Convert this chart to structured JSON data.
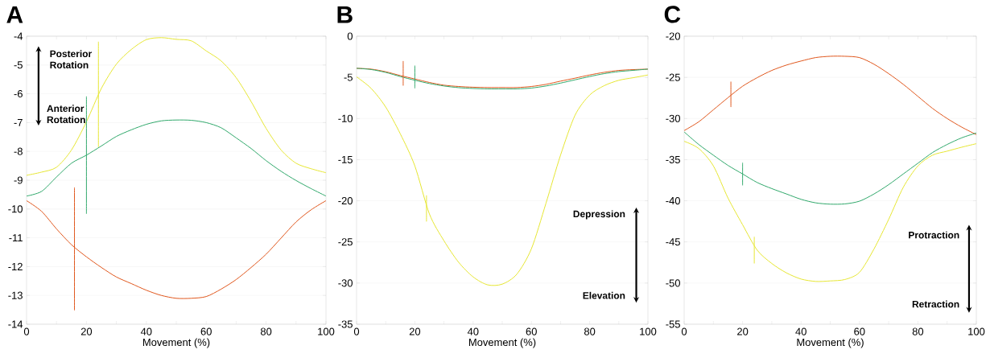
{
  "chart_data": [
    {
      "type": "line",
      "title": "A",
      "xlabel": "Movement (%)",
      "x": [
        0,
        5,
        10,
        15,
        20,
        25,
        30,
        35,
        40,
        45,
        50,
        55,
        60,
        65,
        70,
        75,
        80,
        85,
        90,
        95,
        100
      ],
      "xlim": [
        0,
        100
      ],
      "ylim": [
        -14,
        -4
      ],
      "xticks": [
        0,
        {
          "value": 10,
          "label": null
        },
        20,
        {
          "value": 30,
          "label": null
        },
        40,
        {
          "value": 50,
          "label": null
        },
        60,
        {
          "value": 70,
          "label": null
        },
        80,
        {
          "value": 90,
          "label": null
        },
        100
      ],
      "yticks": [
        -14,
        -13,
        -12,
        -11,
        -10,
        -9,
        -8,
        -7,
        -6,
        -5,
        -4
      ],
      "grid": "y",
      "annotations": [
        "Posterior Rotation",
        "Anterior Rotation"
      ],
      "series": [
        {
          "color": "#e6e632",
          "values": [
            -8.83,
            -8.72,
            -8.55,
            -7.95,
            -6.97,
            -5.81,
            -4.97,
            -4.46,
            -4.12,
            -4.05,
            -4.11,
            -4.16,
            -4.51,
            -4.86,
            -5.44,
            -6.27,
            -7.2,
            -7.95,
            -8.41,
            -8.6,
            -8.74
          ]
        },
        {
          "color": "#2fa86a",
          "values": [
            -9.55,
            -9.39,
            -8.89,
            -8.41,
            -8.13,
            -7.81,
            -7.48,
            -7.25,
            -7.06,
            -6.94,
            -6.91,
            -6.92,
            -7.0,
            -7.18,
            -7.53,
            -7.9,
            -8.32,
            -8.69,
            -9.01,
            -9.29,
            -9.55
          ]
        },
        {
          "color": "#e0561c",
          "values": [
            -9.71,
            -10.08,
            -10.69,
            -11.24,
            -11.66,
            -12.03,
            -12.36,
            -12.59,
            -12.82,
            -13.0,
            -13.1,
            -13.1,
            -13.04,
            -12.78,
            -12.45,
            -12.03,
            -11.57,
            -11.01,
            -10.45,
            -10.03,
            -9.71
          ]
        },
        {
          "color": "#e0561c",
          "x": [
            16,
            16
          ],
          "values": [
            -9.25,
            -13.52
          ]
        },
        {
          "color": "#2fa86a",
          "x": [
            20,
            20
          ],
          "values": [
            -6.09,
            -10.17
          ]
        },
        {
          "color": "#e6e632",
          "x": [
            24,
            24
          ],
          "values": [
            -4.19,
            -7.85
          ]
        }
      ]
    },
    {
      "type": "line",
      "title": "B",
      "xlabel": "Movement (%)",
      "x": [
        0,
        5,
        10,
        15,
        20,
        25,
        30,
        35,
        40,
        45,
        50,
        55,
        60,
        65,
        70,
        75,
        80,
        85,
        90,
        95,
        100
      ],
      "xlim": [
        0,
        100
      ],
      "ylim": [
        -35,
        0
      ],
      "xticks": [
        0,
        {
          "value": 10,
          "label": null
        },
        20,
        {
          "value": 30,
          "label": null
        },
        40,
        {
          "value": 50,
          "label": null
        },
        60,
        {
          "value": 70,
          "label": null
        },
        80,
        {
          "value": 90,
          "label": null
        },
        100
      ],
      "yticks": [
        -35,
        -30,
        -25,
        -20,
        -15,
        -10,
        -5,
        0
      ],
      "grid": "y",
      "annotations": [
        "Depression",
        "Elevation"
      ],
      "series": [
        {
          "color": "#e6e632",
          "values": [
            -4.94,
            -6.34,
            -8.61,
            -11.86,
            -15.76,
            -21.6,
            -24.86,
            -27.46,
            -29.25,
            -30.22,
            -30.13,
            -28.92,
            -25.84,
            -20.31,
            -14.46,
            -9.59,
            -7.15,
            -6.01,
            -5.36,
            -5.04,
            -4.71
          ]
        },
        {
          "color": "#e0561c",
          "values": [
            -3.9,
            -4.0,
            -4.32,
            -4.78,
            -5.2,
            -5.62,
            -5.95,
            -6.11,
            -6.2,
            -6.24,
            -6.24,
            -6.24,
            -6.11,
            -5.85,
            -5.46,
            -5.1,
            -4.71,
            -4.39,
            -4.16,
            -4.06,
            -4.0
          ]
        },
        {
          "color": "#2fa86a",
          "values": [
            -3.9,
            -4.05,
            -4.4,
            -4.9,
            -5.35,
            -5.75,
            -6.05,
            -6.25,
            -6.35,
            -6.4,
            -6.4,
            -6.4,
            -6.3,
            -6.05,
            -5.7,
            -5.3,
            -4.9,
            -4.55,
            -4.3,
            -4.15,
            -4.0
          ]
        },
        {
          "color": "#e0561c",
          "x": [
            16,
            16
          ],
          "values": [
            -3.02,
            -6.01
          ]
        },
        {
          "color": "#2fa86a",
          "x": [
            20,
            20
          ],
          "values": [
            -3.57,
            -6.34
          ]
        },
        {
          "color": "#e6e632",
          "x": [
            24,
            24
          ],
          "values": [
            -19.34,
            -22.52
          ]
        }
      ]
    },
    {
      "type": "line",
      "title": "C",
      "xlabel": "Movement (%)",
      "x": [
        0,
        5,
        10,
        15,
        20,
        25,
        30,
        35,
        40,
        45,
        50,
        55,
        60,
        65,
        70,
        75,
        80,
        85,
        90,
        95,
        100
      ],
      "xlim": [
        0,
        100
      ],
      "ylim": [
        -55,
        -20
      ],
      "xticks": [
        0,
        {
          "value": 10,
          "label": null
        },
        20,
        {
          "value": 30,
          "label": null
        },
        40,
        {
          "value": 50,
          "label": null
        },
        60,
        {
          "value": 70,
          "label": null
        },
        80,
        {
          "value": 90,
          "label": null
        },
        100
      ],
      "yticks": [
        -55,
        -50,
        -45,
        -40,
        -35,
        -30,
        -25,
        -20
      ],
      "grid": "y",
      "annotations": [
        "Protraction",
        "Retraction"
      ],
      "series": [
        {
          "color": "#e0561c",
          "values": [
            -31.47,
            -30.4,
            -28.94,
            -27.47,
            -26.08,
            -25.04,
            -24.16,
            -23.51,
            -23.02,
            -22.6,
            -22.44,
            -22.44,
            -22.6,
            -23.41,
            -24.55,
            -25.85,
            -27.31,
            -28.77,
            -30.0,
            -31.05,
            -31.96
          ]
        },
        {
          "color": "#2fa86a",
          "values": [
            -31.63,
            -33.16,
            -34.46,
            -35.7,
            -36.74,
            -37.78,
            -38.52,
            -39.17,
            -39.82,
            -40.25,
            -40.41,
            -40.38,
            -40.05,
            -39.17,
            -38.04,
            -36.74,
            -35.44,
            -34.14,
            -33.16,
            -32.35,
            -31.76
          ]
        },
        {
          "color": "#e6e632",
          "values": [
            -32.77,
            -33.65,
            -35.76,
            -39.66,
            -42.91,
            -46.0,
            -47.62,
            -48.76,
            -49.51,
            -49.8,
            -49.74,
            -49.57,
            -48.7,
            -45.84,
            -42.26,
            -38.36,
            -35.76,
            -34.46,
            -33.97,
            -33.49,
            -33.06
          ]
        },
        {
          "color": "#e0561c",
          "x": [
            16,
            16
          ],
          "values": [
            -25.52,
            -28.61
          ]
        },
        {
          "color": "#2fa86a",
          "x": [
            20,
            20
          ],
          "values": [
            -35.37,
            -38.13
          ]
        },
        {
          "color": "#e6e632",
          "x": [
            24,
            24
          ],
          "values": [
            -44.37,
            -47.62
          ]
        }
      ]
    }
  ]
}
